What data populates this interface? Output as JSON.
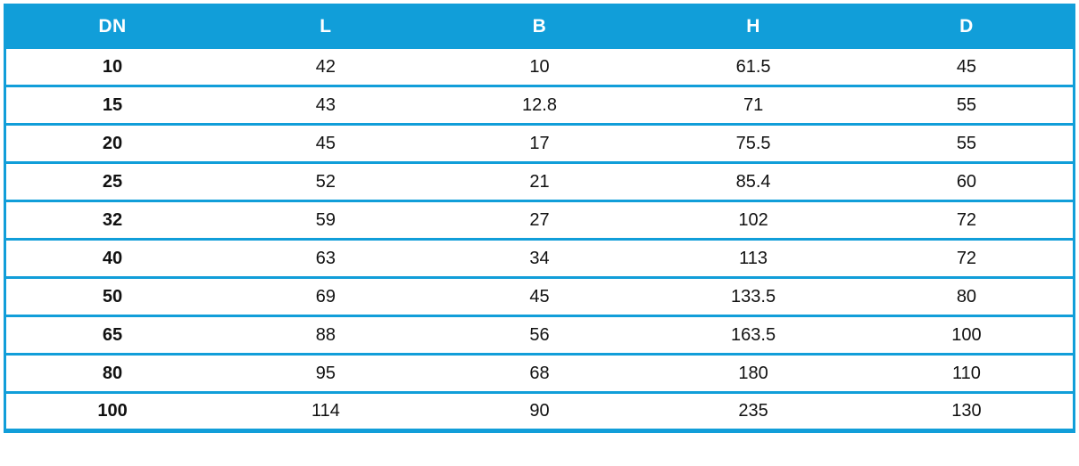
{
  "colors": {
    "accent": "#119ED9",
    "text": "#111111",
    "header_text": "#FFFFFF",
    "row_bg": "#FFFFFF"
  },
  "table": {
    "columns": [
      {
        "key": "dn",
        "label": "DN"
      },
      {
        "key": "l",
        "label": "L"
      },
      {
        "key": "b",
        "label": "B"
      },
      {
        "key": "h",
        "label": "H"
      },
      {
        "key": "d",
        "label": "D"
      }
    ],
    "rows": [
      {
        "dn": "10",
        "l": "42",
        "b": "10",
        "h": "61.5",
        "d": "45"
      },
      {
        "dn": "15",
        "l": "43",
        "b": "12.8",
        "h": "71",
        "d": "55"
      },
      {
        "dn": "20",
        "l": "45",
        "b": "17",
        "h": "75.5",
        "d": "55"
      },
      {
        "dn": "25",
        "l": "52",
        "b": "21",
        "h": "85.4",
        "d": "60"
      },
      {
        "dn": "32",
        "l": "59",
        "b": "27",
        "h": "102",
        "d": "72"
      },
      {
        "dn": "40",
        "l": "63",
        "b": "34",
        "h": "113",
        "d": "72"
      },
      {
        "dn": "50",
        "l": "69",
        "b": "45",
        "h": "133.5",
        "d": "80"
      },
      {
        "dn": "65",
        "l": "88",
        "b": "56",
        "h": "163.5",
        "d": "100"
      },
      {
        "dn": "80",
        "l": "95",
        "b": "68",
        "h": "180",
        "d": "110"
      },
      {
        "dn": "100",
        "l": "114",
        "b": "90",
        "h": "235",
        "d": "130"
      }
    ]
  }
}
